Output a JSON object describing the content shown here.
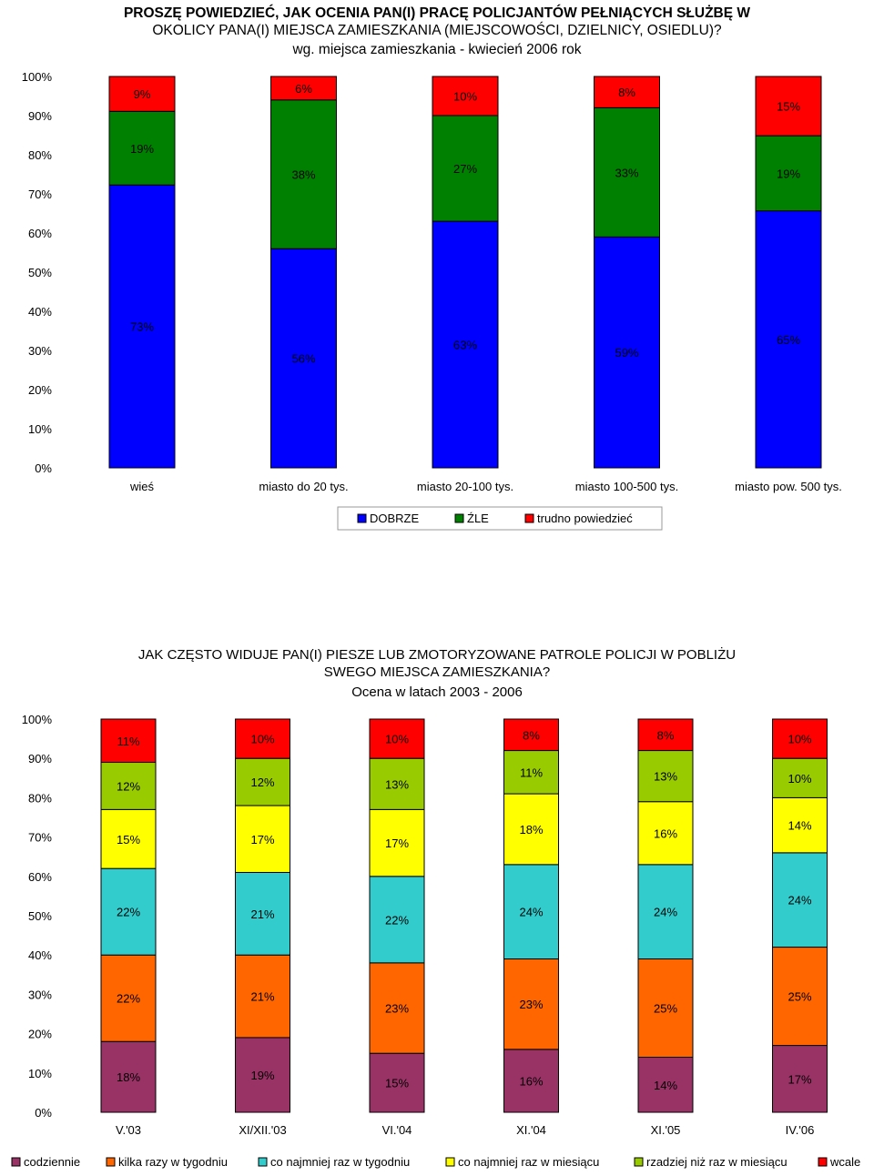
{
  "chart_data": [
    {
      "type": "bar",
      "stacked": true,
      "normalized": true,
      "title_lines": [
        "PROSZĘ POWIEDZIEĆ, JAK OCENIA PAN(I) PRACĘ POLICJANTÓW PEŁNIĄCYCH SŁUŻBĘ W",
        "OKOLICY PANA(I) MIEJSCA ZAMIESZKANIA (MIEJSCOWOŚCI, DZIELNICY, OSIEDLU)?"
      ],
      "subtitle": "wg. miejsca zamieszkania - kwiecień 2006 rok",
      "categories": [
        "wieś",
        "miasto do 20 tys.",
        "miasto 20-100 tys.",
        "miasto 100-500 tys.",
        "miasto pow. 500 tys."
      ],
      "series": [
        {
          "name": "DOBRZE",
          "color": "#0000FF",
          "values": [
            73,
            56,
            63,
            59,
            65
          ],
          "labels": [
            "73%",
            "56%",
            "63%",
            "59%",
            "65%"
          ]
        },
        {
          "name": "ŹLE",
          "color": "#008000",
          "values": [
            19,
            38,
            27,
            33,
            19
          ],
          "labels": [
            "19%",
            "38%",
            "27%",
            "33%",
            "19%"
          ]
        },
        {
          "name": "trudno powiedzieć",
          "color": "#FF0000",
          "values": [
            9,
            6,
            10,
            8,
            15
          ],
          "labels": [
            "9%",
            "6%",
            "10%",
            "8%",
            "15%"
          ]
        }
      ],
      "yticks": [
        "0%",
        "10%",
        "20%",
        "30%",
        "40%",
        "50%",
        "60%",
        "70%",
        "80%",
        "90%",
        "100%"
      ],
      "ylim": [
        0,
        100
      ],
      "grid": false,
      "legend_position": "bottom"
    },
    {
      "type": "bar",
      "stacked": true,
      "normalized": true,
      "title_lines": [
        "JAK CZĘSTO WIDUJE PAN(I) PIESZE LUB ZMOTORYZOWANE PATROLE POLICJI W POBLIŻU",
        "SWEGO MIEJSCA ZAMIESZKANIA?"
      ],
      "subtitle": "Ocena w latach 2003 - 2006",
      "categories": [
        "V.'03",
        "XI/XII.'03",
        "VI.'04",
        "XI.'04",
        "XI.'05",
        "IV.'06"
      ],
      "series": [
        {
          "name": "codziennie",
          "color": "#993366",
          "values": [
            18,
            19,
            15,
            16,
            14,
            17
          ],
          "labels": [
            "18%",
            "19%",
            "15%",
            "16%",
            "14%",
            "17%"
          ]
        },
        {
          "name": "kilka razy w tygodniu",
          "color": "#FF6600",
          "values": [
            22,
            21,
            23,
            23,
            25,
            25
          ],
          "labels": [
            "22%",
            "21%",
            "23%",
            "23%",
            "25%",
            "25%"
          ]
        },
        {
          "name": "co najmniej raz w tygodniu",
          "color": "#33CCCC",
          "values": [
            22,
            21,
            22,
            24,
            24,
            24
          ],
          "labels": [
            "22%",
            "21%",
            "22%",
            "24%",
            "24%",
            "24%"
          ]
        },
        {
          "name": "co najmniej raz w miesiącu",
          "color": "#FFFF00",
          "values": [
            15,
            17,
            17,
            18,
            16,
            14
          ],
          "labels": [
            "15%",
            "17%",
            "17%",
            "18%",
            "16%",
            "14%"
          ]
        },
        {
          "name": "rzadziej niż raz w miesiącu",
          "color": "#99CC00",
          "values": [
            12,
            12,
            13,
            11,
            13,
            10
          ],
          "labels": [
            "12%",
            "12%",
            "13%",
            "11%",
            "13%",
            "10%"
          ]
        },
        {
          "name": "wcale",
          "color": "#FF0000",
          "values": [
            11,
            10,
            10,
            8,
            8,
            10
          ],
          "labels": [
            "11%",
            "10%",
            "10%",
            "8%",
            "8%",
            "10%"
          ]
        }
      ],
      "yticks": [
        "0%",
        "10%",
        "20%",
        "30%",
        "40%",
        "50%",
        "60%",
        "70%",
        "80%",
        "90%",
        "100%"
      ],
      "ylim": [
        0,
        100
      ],
      "grid": false,
      "legend_position": "bottom"
    }
  ]
}
